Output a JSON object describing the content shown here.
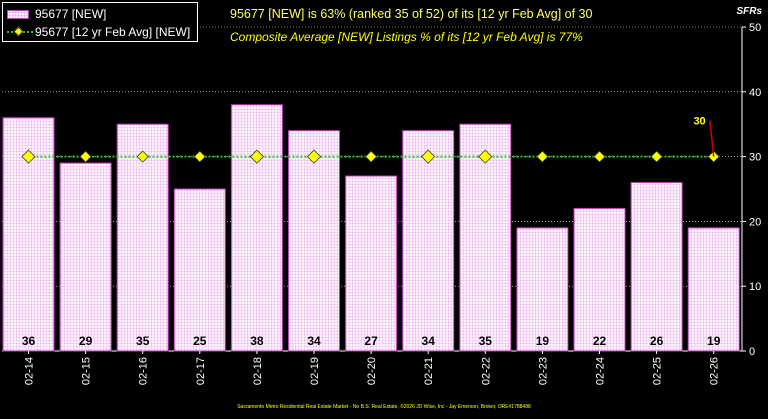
{
  "legend": {
    "bar_label": "95677 [NEW]",
    "line_label": "95677 [12 yr Feb Avg] [NEW]"
  },
  "header": {
    "headline": "95677 [NEW] is 63% (ranked 35 of 52)  of its [12 yr Feb Avg] of 30",
    "subline": "Composite Average [NEW] Listings % of its [12 yr Feb Avg] is 77%"
  },
  "unit_label": "SFRs",
  "footer": "Sacramento Metro Residential Real Estate Market - No B.S. Real Estate, ©2026 JD Wise, Inc - Jay Emerson, Broker, DRE#1788488",
  "colors": {
    "background": "#000000",
    "bar_fill": "#ffffff",
    "bar_pattern": "#f0b6f0",
    "bar_border": "#c040c0",
    "avg_line": "#22cc22",
    "avg_marker": "#ffff00",
    "grid": "#ffffff",
    "annotation": "#ffff00",
    "annotation_leader": "#cc0000"
  },
  "chart_data": {
    "type": "bar",
    "categories": [
      "02-14",
      "02-15",
      "02-16",
      "02-17",
      "02-18",
      "02-19",
      "02-20",
      "02-21",
      "02-22",
      "02-23",
      "02-24",
      "02-25",
      "02-26"
    ],
    "series": [
      {
        "name": "95677 [NEW]",
        "type": "bar",
        "values": [
          36,
          29,
          35,
          25,
          38,
          34,
          27,
          34,
          35,
          19,
          22,
          26,
          19
        ]
      },
      {
        "name": "95677 [12 yr Feb Avg] [NEW]",
        "type": "line",
        "values": [
          30,
          30,
          30,
          30,
          30,
          30,
          30,
          30,
          30,
          30,
          30,
          30,
          30
        ]
      }
    ],
    "data_labels": [
      "36",
      "29",
      "35",
      "25",
      "38",
      "34",
      "27",
      "34",
      "35",
      "19",
      "22",
      "26",
      "19"
    ],
    "avg_annotation": "30",
    "y_ticks": [
      "0",
      "10",
      "20",
      "30",
      "40",
      "50"
    ],
    "ylim": [
      0,
      50
    ],
    "y_axis_side": "right",
    "grid": true,
    "legend_position": "top-left"
  }
}
